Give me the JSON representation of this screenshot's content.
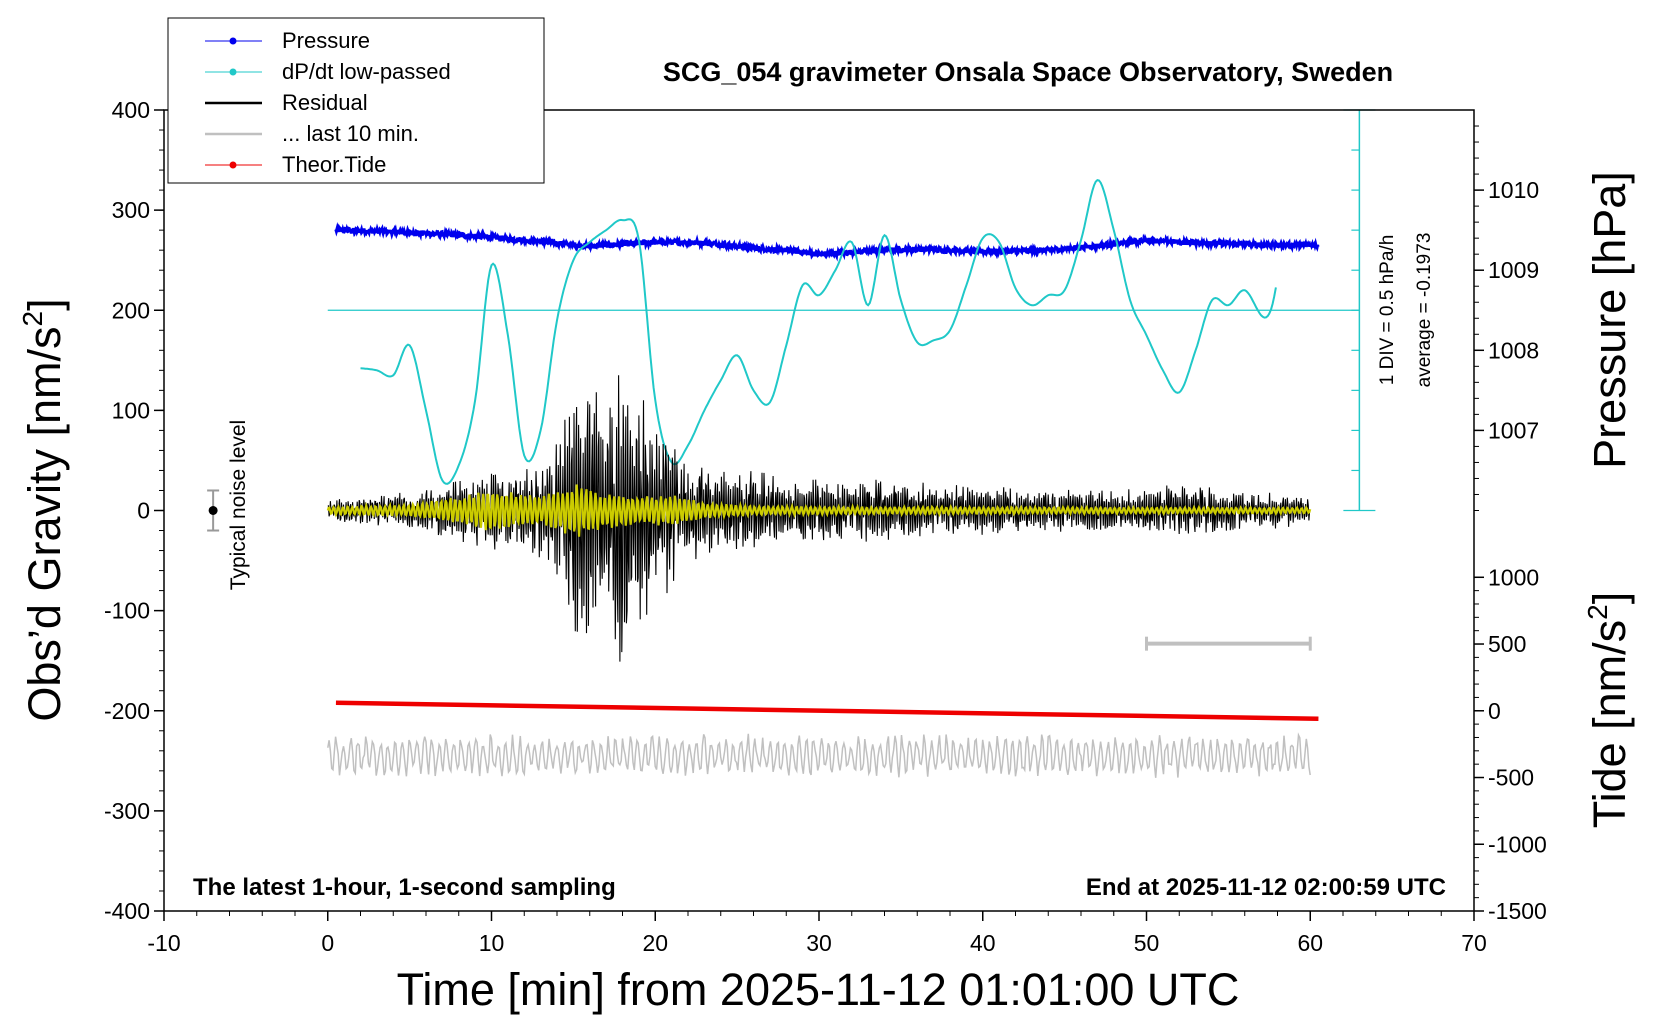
{
  "chart_data": {
    "type": "line",
    "title": "SCG_054 gravimeter Onsala Space Observatory, Sweden",
    "subtitle_left": "The latest 1-hour, 1-second sampling",
    "subtitle_right": "End at 2025-11-12 02:00:59 UTC",
    "xlabel": "Time [min] from 2025-11-12 01:01:00 UTC",
    "ylabel_left": "Obs'd Gravity [nm/s²]",
    "ylabel_left_main": "Obs’d Gravity [nm/s",
    "ylabel_left_sup": "2",
    "ylabel_left_end": "]",
    "ylabel_right_pressure": "Pressure [hPa]",
    "ylabel_right_tide_main": "Tide [nm/s",
    "ylabel_right_tide_sup": "2",
    "ylabel_right_tide_end": "]",
    "xlim": [
      -10,
      70
    ],
    "ylim": [
      -400,
      400
    ],
    "x_ticks": [
      "-10",
      "0",
      "10",
      "20",
      "30",
      "40",
      "50",
      "60",
      "70"
    ],
    "x_tick_values": [
      -10,
      0,
      10,
      20,
      30,
      40,
      50,
      60,
      70
    ],
    "y_ticks": [
      "400",
      "300",
      "200",
      "100",
      "0",
      "-100",
      "-200",
      "-300",
      "-400"
    ],
    "y_tick_values": [
      400,
      300,
      200,
      100,
      0,
      -100,
      -200,
      -300,
      -400
    ],
    "pressure_ticks": [
      "1010",
      "1009",
      "1008",
      "1007"
    ],
    "pressure_tick_values": [
      1010,
      1009,
      1008,
      1007
    ],
    "pressure_axis_ref": {
      "value_at_gravity_minus": 1006,
      "value_at_gravity_plus": 1011,
      "gravity_minus": 0,
      "gravity_plus": 400
    },
    "tide_ticks": [
      "1000",
      "500",
      "0",
      "-500",
      "-1000",
      "-1500"
    ],
    "tide_tick_values": [
      1000,
      500,
      0,
      -500,
      -1000,
      -1500
    ],
    "tide_axis_ref": {
      "value_at_gravity_minus": -1500,
      "value_at_gravity_plus": 1000,
      "gravity_minus": -400,
      "gravity_plus": -66.7
    },
    "noise_label": "Typical noise level",
    "noise_level": {
      "x": -7,
      "y": 0,
      "err": 20
    },
    "dpdt_scale_label_1": "1 DIV = 0.5 hPa/h",
    "dpdt_scale_label_2": "average = -0.1973",
    "dpdt_axis": {
      "x": 63,
      "y_from": 0,
      "y_to": 400,
      "div_count": 10,
      "zero_line_y": 200
    },
    "last10_bar": {
      "x_from": 50,
      "x_to": 60,
      "y": -133
    },
    "legend": [
      {
        "label": "Pressure",
        "color": "#0000ee",
        "marker": true
      },
      {
        "label": "dP/dt low-passed",
        "color": "#20c8c8",
        "marker": true
      },
      {
        "label": "Residual",
        "color": "#000000",
        "marker": false
      },
      {
        "label": "... last 10 min.",
        "color": "#c0c0c0",
        "marker": false
      },
      {
        "label": "Theor.Tide",
        "color": "#ee0000",
        "marker": true
      }
    ],
    "series": [
      {
        "name": "Pressure",
        "color": "#0000ee",
        "axis": "gravity-equivalent",
        "x": [
          0.5,
          3,
          6,
          8,
          10,
          12,
          14,
          16,
          18,
          20,
          22,
          24,
          26,
          28,
          30,
          32,
          34,
          36,
          38,
          40,
          42,
          44,
          46,
          48,
          50,
          52,
          54,
          56,
          58,
          60.5
        ],
        "y": [
          280,
          279,
          277,
          275,
          273,
          270,
          267,
          264,
          266,
          268,
          268,
          266,
          262,
          260,
          256,
          258,
          260,
          261,
          260,
          259,
          259,
          260,
          263,
          266,
          270,
          268,
          267,
          266,
          265,
          265
        ]
      },
      {
        "name": "dP/dt low-passed",
        "color": "#20c8c8",
        "axis": "gravity-equivalent",
        "x": [
          2,
          3,
          4,
          5,
          6,
          7,
          8,
          9,
          10,
          11,
          12,
          13,
          14,
          15,
          16,
          17,
          18,
          19,
          20,
          21,
          22,
          23,
          24,
          25,
          26,
          27,
          28,
          29,
          30,
          31,
          32,
          33,
          34,
          35,
          36,
          37,
          38,
          39,
          40,
          41,
          42,
          43,
          44,
          45,
          46,
          47,
          48,
          49,
          50,
          51,
          52,
          53,
          54,
          55,
          56,
          57,
          58
        ],
        "y": [
          142,
          140,
          135,
          165,
          100,
          30,
          45,
          110,
          245,
          175,
          55,
          80,
          190,
          250,
          268,
          280,
          290,
          270,
          110,
          48,
          65,
          100,
          130,
          155,
          120,
          108,
          165,
          225,
          215,
          240,
          268,
          205,
          275,
          210,
          168,
          170,
          180,
          225,
          272,
          268,
          222,
          205,
          215,
          220,
          270,
          330,
          280,
          210,
          175,
          140,
          118,
          160,
          210,
          205,
          220,
          195,
          182
        ]
      },
      {
        "name": "Residual",
        "color": "#000000",
        "axis": "gravity",
        "amplitude_envelope": {
          "x": [
            0,
            3,
            6,
            8,
            10,
            12,
            14,
            15,
            16,
            17,
            18,
            19,
            20,
            21,
            22,
            23,
            24,
            26,
            28,
            30,
            32,
            35,
            40,
            45,
            50,
            52,
            55,
            60
          ],
          "y": [
            12,
            15,
            22,
            30,
            45,
            40,
            70,
            120,
            150,
            110,
            160,
            130,
            80,
            90,
            60,
            45,
            40,
            42,
            38,
            32,
            35,
            30,
            25,
            22,
            22,
            28,
            22,
            15
          ]
        }
      },
      {
        "name": "Residual low-pass",
        "color": "#cccc00",
        "axis": "gravity",
        "amplitude_envelope": {
          "x": [
            0,
            5,
            8,
            10,
            13,
            15,
            17,
            19,
            21,
            23,
            26,
            30,
            60
          ],
          "y": [
            4,
            6,
            14,
            22,
            14,
            28,
            18,
            14,
            16,
            8,
            5,
            4,
            3
          ]
        }
      },
      {
        "name": "... last 10 min.",
        "color": "#c0c0c0",
        "axis": "gravity",
        "baseline": -245,
        "amplitude": 22,
        "x_range": [
          0,
          60
        ]
      },
      {
        "name": "Theor.Tide",
        "color": "#ee0000",
        "axis": "tide",
        "x": [
          0.5,
          60.5
        ],
        "y": [
          60,
          -60
        ]
      }
    ],
    "grid": false,
    "legend_position": "top-left"
  }
}
